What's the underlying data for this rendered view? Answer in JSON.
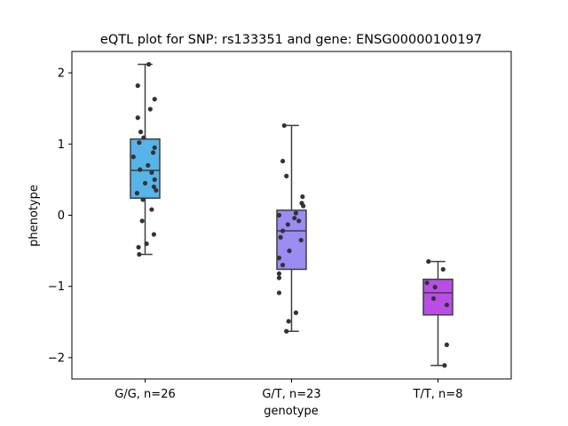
{
  "chart_data": {
    "type": "box",
    "title": "eQTL plot for SNP: rs133351 and gene: ENSG00000100197",
    "xlabel": "genotype",
    "ylabel": "phenotype",
    "ylim": [
      -2.3,
      2.3
    ],
    "yticks": [
      -2,
      -1,
      0,
      1,
      2
    ],
    "yticklabels": [
      "−2",
      "−1",
      "0",
      "1",
      "2"
    ],
    "grid": false,
    "categories": [
      "G/G, n=26",
      "G/T, n=23",
      "T/T, n=8"
    ],
    "boxes": [
      {
        "category": "G/G, n=26",
        "color": "#56b4e9",
        "whisker_low": -0.55,
        "q1": 0.24,
        "median": 0.63,
        "q3": 1.07,
        "whisker_high": 2.12
      },
      {
        "category": "G/T, n=23",
        "color": "#9a8cf3",
        "whisker_low": -1.63,
        "q1": -0.76,
        "median": -0.22,
        "q3": 0.07,
        "whisker_high": 1.26
      },
      {
        "category": "T/T, n=8",
        "color": "#b84ee6",
        "whisker_low": -2.11,
        "q1": -1.4,
        "median": -1.09,
        "q3": -0.9,
        "whisker_high": -0.65
      }
    ],
    "points": [
      [
        {
          "dx": 0.05,
          "y": 2.12
        },
        {
          "dx": -0.1,
          "y": 1.82
        },
        {
          "dx": 0.13,
          "y": 1.63
        },
        {
          "dx": 0.07,
          "y": 1.49
        },
        {
          "dx": -0.1,
          "y": 1.37
        },
        {
          "dx": -0.06,
          "y": 1.17
        },
        {
          "dx": -0.02,
          "y": 1.09
        },
        {
          "dx": -0.08,
          "y": 1.02
        },
        {
          "dx": 0.13,
          "y": 0.95
        },
        {
          "dx": 0.11,
          "y": 0.88
        },
        {
          "dx": -0.16,
          "y": 0.82
        },
        {
          "dx": 0.04,
          "y": 0.7
        },
        {
          "dx": -0.07,
          "y": 0.64
        },
        {
          "dx": 0.09,
          "y": 0.6
        },
        {
          "dx": 0.13,
          "y": 0.5
        },
        {
          "dx": 0.0,
          "y": 0.45
        },
        {
          "dx": 0.12,
          "y": 0.4
        },
        {
          "dx": 0.15,
          "y": 0.35
        },
        {
          "dx": -0.11,
          "y": 0.31
        },
        {
          "dx": -0.03,
          "y": 0.22
        },
        {
          "dx": 0.09,
          "y": 0.08
        },
        {
          "dx": -0.04,
          "y": -0.08
        },
        {
          "dx": 0.12,
          "y": -0.27
        },
        {
          "dx": 0.02,
          "y": -0.4
        },
        {
          "dx": -0.09,
          "y": -0.45
        },
        {
          "dx": -0.08,
          "y": -0.55
        }
      ],
      [
        {
          "dx": -0.1,
          "y": 1.26
        },
        {
          "dx": -0.12,
          "y": 0.76
        },
        {
          "dx": -0.07,
          "y": 0.55
        },
        {
          "dx": 0.15,
          "y": 0.26
        },
        {
          "dx": 0.14,
          "y": 0.17
        },
        {
          "dx": 0.16,
          "y": 0.13
        },
        {
          "dx": 0.06,
          "y": 0.03
        },
        {
          "dx": -0.17,
          "y": 0.0
        },
        {
          "dx": 0.04,
          "y": -0.04
        },
        {
          "dx": -0.05,
          "y": -0.13
        },
        {
          "dx": -0.12,
          "y": -0.22
        },
        {
          "dx": -0.15,
          "y": -0.31
        },
        {
          "dx": 0.13,
          "y": -0.35
        },
        {
          "dx": -0.03,
          "y": -0.5
        },
        {
          "dx": -0.17,
          "y": -0.6
        },
        {
          "dx": -0.12,
          "y": -0.7
        },
        {
          "dx": -0.17,
          "y": -0.82
        },
        {
          "dx": -0.17,
          "y": -0.88
        },
        {
          "dx": -0.17,
          "y": -1.09
        },
        {
          "dx": 0.06,
          "y": -1.37
        },
        {
          "dx": -0.04,
          "y": -1.49
        },
        {
          "dx": -0.07,
          "y": -1.63
        },
        {
          "dx": 0.1,
          "y": -0.08
        }
      ],
      [
        {
          "dx": -0.13,
          "y": -0.65
        },
        {
          "dx": 0.07,
          "y": -0.76
        },
        {
          "dx": -0.15,
          "y": -0.95
        },
        {
          "dx": -0.04,
          "y": -1.01
        },
        {
          "dx": -0.06,
          "y": -1.17
        },
        {
          "dx": 0.12,
          "y": -1.26
        },
        {
          "dx": 0.12,
          "y": -1.82
        },
        {
          "dx": 0.09,
          "y": -2.11
        }
      ]
    ]
  }
}
